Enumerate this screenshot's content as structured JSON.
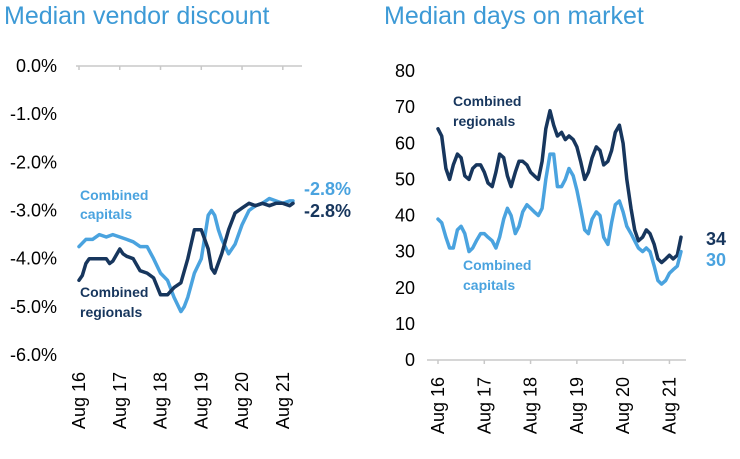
{
  "chart_data": [
    {
      "type": "line",
      "title": "Median vendor discount",
      "y_ticks": [
        "0.0%",
        "-1.0%",
        "-2.0%",
        "-3.0%",
        "-4.0%",
        "-5.0%",
        "-6.0%"
      ],
      "ylim": [
        -6.0,
        0.0
      ],
      "x_ticks": [
        "Aug 16",
        "Aug 17",
        "Aug 18",
        "Aug 19",
        "Aug 20",
        "Aug 21"
      ],
      "x_range": [
        2016.0,
        2021.25
      ],
      "grid": false,
      "colors": {
        "capitals": "#4aa3df",
        "regionals": "#17365d"
      },
      "series": [
        {
          "name": "Combined capitals",
          "label_lines": [
            "Combined",
            "capitals"
          ],
          "end_label": "-2.8%",
          "x": [
            2016.0,
            2016.17,
            2016.33,
            2016.5,
            2016.67,
            2016.83,
            2017.0,
            2017.17,
            2017.33,
            2017.5,
            2017.67,
            2017.83,
            2018.0,
            2018.17,
            2018.33,
            2018.5,
            2018.58,
            2018.67,
            2018.75,
            2018.83,
            2019.0,
            2019.17,
            2019.25,
            2019.33,
            2019.42,
            2019.5,
            2019.67,
            2019.83,
            2020.0,
            2020.17,
            2020.33,
            2020.5,
            2020.67,
            2020.83,
            2021.0,
            2021.17,
            2021.25
          ],
          "y": [
            -3.75,
            -3.6,
            -3.6,
            -3.5,
            -3.55,
            -3.5,
            -3.55,
            -3.6,
            -3.65,
            -3.75,
            -3.75,
            -4.0,
            -4.3,
            -4.45,
            -4.8,
            -5.1,
            -5.0,
            -4.8,
            -4.55,
            -4.3,
            -4.0,
            -3.1,
            -3.0,
            -3.1,
            -3.4,
            -3.6,
            -3.9,
            -3.7,
            -3.3,
            -3.0,
            -2.9,
            -2.85,
            -2.75,
            -2.8,
            -2.85,
            -2.8,
            -2.8
          ]
        },
        {
          "name": "Combined regionals",
          "label_lines": [
            "Combined",
            "regionals"
          ],
          "end_label": "-2.8%",
          "x": [
            2016.0,
            2016.08,
            2016.17,
            2016.25,
            2016.33,
            2016.5,
            2016.67,
            2016.75,
            2016.83,
            2017.0,
            2017.08,
            2017.17,
            2017.33,
            2017.5,
            2017.67,
            2017.83,
            2018.0,
            2018.17,
            2018.33,
            2018.5,
            2018.67,
            2018.83,
            2019.0,
            2019.17,
            2019.25,
            2019.33,
            2019.5,
            2019.67,
            2019.83,
            2020.0,
            2020.17,
            2020.33,
            2020.5,
            2020.67,
            2020.83,
            2021.0,
            2021.17,
            2021.25
          ],
          "y": [
            -4.45,
            -4.35,
            -4.1,
            -4.0,
            -4.0,
            -4.0,
            -4.0,
            -4.1,
            -4.05,
            -3.8,
            -3.9,
            -3.95,
            -4.0,
            -4.25,
            -4.3,
            -4.4,
            -4.75,
            -4.75,
            -4.6,
            -4.5,
            -4.0,
            -3.4,
            -3.4,
            -3.8,
            -4.2,
            -4.3,
            -3.9,
            -3.4,
            -3.05,
            -2.95,
            -2.85,
            -2.9,
            -2.85,
            -2.9,
            -2.85,
            -2.85,
            -2.9,
            -2.85
          ]
        }
      ]
    },
    {
      "type": "line",
      "title": "Median days on market",
      "y_ticks": [
        "80",
        "70",
        "60",
        "50",
        "40",
        "30",
        "20",
        "10",
        "0"
      ],
      "ylim": [
        0,
        80
      ],
      "x_ticks": [
        "Aug 16",
        "Aug 17",
        "Aug 18",
        "Aug 19",
        "Aug 20",
        "Aug 21"
      ],
      "x_range": [
        2016.0,
        2021.25
      ],
      "grid": false,
      "colors": {
        "capitals": "#4aa3df",
        "regionals": "#17365d"
      },
      "series": [
        {
          "name": "Combined regionals",
          "label_lines": [
            "Combined",
            "regionals"
          ],
          "end_label": "34",
          "x": [
            2016.0,
            2016.08,
            2016.17,
            2016.25,
            2016.33,
            2016.42,
            2016.5,
            2016.58,
            2016.67,
            2016.75,
            2016.83,
            2016.92,
            2017.0,
            2017.08,
            2017.17,
            2017.25,
            2017.33,
            2017.42,
            2017.5,
            2017.58,
            2017.67,
            2017.75,
            2017.83,
            2017.92,
            2018.0,
            2018.08,
            2018.17,
            2018.25,
            2018.33,
            2018.42,
            2018.5,
            2018.58,
            2018.67,
            2018.75,
            2018.83,
            2018.92,
            2019.0,
            2019.08,
            2019.17,
            2019.25,
            2019.33,
            2019.42,
            2019.5,
            2019.58,
            2019.67,
            2019.75,
            2019.83,
            2019.92,
            2020.0,
            2020.08,
            2020.17,
            2020.25,
            2020.33,
            2020.42,
            2020.5,
            2020.58,
            2020.67,
            2020.75,
            2020.83,
            2020.92,
            2021.0,
            2021.08,
            2021.17,
            2021.25
          ],
          "y": [
            64,
            62,
            53,
            50,
            54,
            57,
            56,
            51,
            50,
            53,
            54,
            54,
            52,
            49,
            48,
            52,
            57,
            56,
            51,
            48,
            52,
            55,
            55,
            54,
            52,
            51,
            50,
            55,
            64,
            69,
            65,
            62,
            63,
            61,
            62,
            61,
            59,
            55,
            50,
            52,
            56,
            59,
            58,
            54,
            55,
            58,
            63,
            65,
            60,
            50,
            42,
            36,
            33,
            34,
            36,
            35,
            32,
            28,
            27,
            28,
            29,
            28,
            29,
            34
          ]
        },
        {
          "name": "Combined capitals",
          "label_lines": [
            "Combined",
            "capitals"
          ],
          "end_label": "30",
          "x": [
            2016.0,
            2016.08,
            2016.17,
            2016.25,
            2016.33,
            2016.42,
            2016.5,
            2016.58,
            2016.67,
            2016.75,
            2016.83,
            2016.92,
            2017.0,
            2017.08,
            2017.17,
            2017.25,
            2017.33,
            2017.42,
            2017.5,
            2017.58,
            2017.67,
            2017.75,
            2017.83,
            2017.92,
            2018.0,
            2018.08,
            2018.17,
            2018.25,
            2018.33,
            2018.42,
            2018.5,
            2018.58,
            2018.67,
            2018.75,
            2018.83,
            2018.92,
            2019.0,
            2019.08,
            2019.17,
            2019.25,
            2019.33,
            2019.42,
            2019.5,
            2019.58,
            2019.67,
            2019.75,
            2019.83,
            2019.92,
            2020.0,
            2020.08,
            2020.17,
            2020.25,
            2020.33,
            2020.42,
            2020.5,
            2020.58,
            2020.67,
            2020.75,
            2020.83,
            2020.92,
            2021.0,
            2021.08,
            2021.17,
            2021.25
          ],
          "y": [
            39,
            38,
            34,
            31,
            31,
            36,
            37,
            35,
            30,
            31,
            33,
            35,
            35,
            34,
            33,
            31,
            34,
            39,
            42,
            40,
            35,
            37,
            41,
            43,
            42,
            41,
            40,
            42,
            50,
            57,
            57,
            48,
            48,
            50,
            53,
            51,
            47,
            42,
            36,
            35,
            39,
            41,
            40,
            34,
            32,
            38,
            43,
            44,
            41,
            37,
            35,
            33,
            31,
            30,
            31,
            30,
            26,
            22,
            21,
            22,
            24,
            25,
            26,
            30
          ]
        }
      ]
    }
  ]
}
